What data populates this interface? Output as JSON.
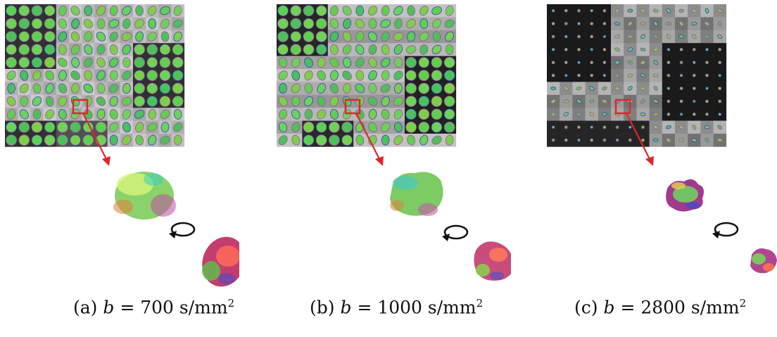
{
  "panels": [
    {
      "label": "(a)",
      "var": "b",
      "eq": "= 700 s/mm",
      "exp": "2"
    },
    {
      "label": "(b)",
      "var": "b",
      "eq": "= 1000 s/mm",
      "exp": "2"
    },
    {
      "label": "(c)",
      "var": "b",
      "eq": "= 2800 s/mm",
      "exp": "2"
    }
  ],
  "colors": {
    "highlight": "#e0262c",
    "arrow": "#e0262c",
    "rotation_icon": "#111111"
  }
}
